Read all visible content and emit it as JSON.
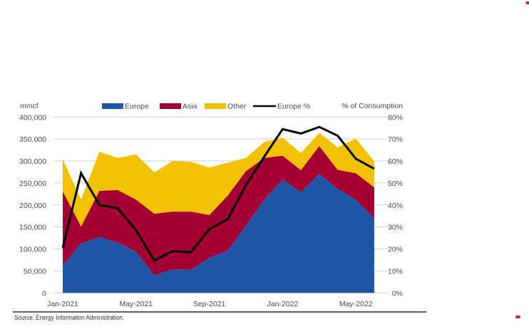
{
  "chart_data": {
    "type": "area",
    "stacked": true,
    "title": "",
    "left_axis_title": "mmcf",
    "right_axis_title": "% of Consumption",
    "x": [
      "Jan-2021",
      "Feb-2021",
      "Mar-2021",
      "Apr-2021",
      "May-2021",
      "Jun-2021",
      "Jul-2021",
      "Aug-2021",
      "Sep-2021",
      "Oct-2021",
      "Nov-2021",
      "Dec-2021",
      "Jan-2022",
      "Feb-2022",
      "Mar-2022",
      "Apr-2022",
      "May-2022",
      "Jun-2022"
    ],
    "x_tick_labels": [
      "Jan-2021",
      "May-2021",
      "Sep-2021",
      "Jan-2022",
      "May-2022"
    ],
    "y_left": {
      "min": 0,
      "max": 400000,
      "ticks": [
        "0",
        "50,000",
        "100,000",
        "150,000",
        "200,000",
        "250,000",
        "300,000",
        "350,000",
        "400,000"
      ]
    },
    "y_right": {
      "min": 0,
      "max": 80,
      "ticks": [
        "0%",
        "10%",
        "20%",
        "30%",
        "40%",
        "50%",
        "60%",
        "70%",
        "80%"
      ]
    },
    "grid": true,
    "legend_position": "top",
    "series": [
      {
        "name": "Europe",
        "kind": "area",
        "axis": "left",
        "color": "#1f55a5",
        "values": [
          62000,
          113000,
          127000,
          115000,
          94000,
          40000,
          54000,
          53000,
          80000,
          96000,
          153000,
          212000,
          258000,
          229000,
          271000,
          237000,
          212000,
          169000
        ]
      },
      {
        "name": "Asia",
        "kind": "area",
        "axis": "left",
        "color": "#a50034",
        "values": [
          169000,
          38000,
          105000,
          119000,
          118000,
          140000,
          131000,
          132000,
          97000,
          125000,
          124000,
          95000,
          54000,
          50000,
          63000,
          43000,
          60000,
          71000
        ]
      },
      {
        "name": "Other",
        "kind": "area",
        "axis": "left",
        "color": "#f2c200",
        "values": [
          73000,
          61000,
          89000,
          73000,
          103000,
          94000,
          115000,
          113000,
          108000,
          75000,
          30000,
          36000,
          41000,
          39000,
          30000,
          51000,
          79000,
          59000
        ]
      },
      {
        "name": "Europe %",
        "kind": "line",
        "axis": "right",
        "color": "#000000",
        "values": [
          20.5,
          54.5,
          40,
          38.5,
          28.5,
          14.8,
          19,
          18.5,
          29,
          33.5,
          49,
          62,
          74.5,
          72.5,
          75.5,
          71.5,
          61,
          56.5
        ]
      }
    ],
    "source": "Source: Energy Information Administration."
  }
}
